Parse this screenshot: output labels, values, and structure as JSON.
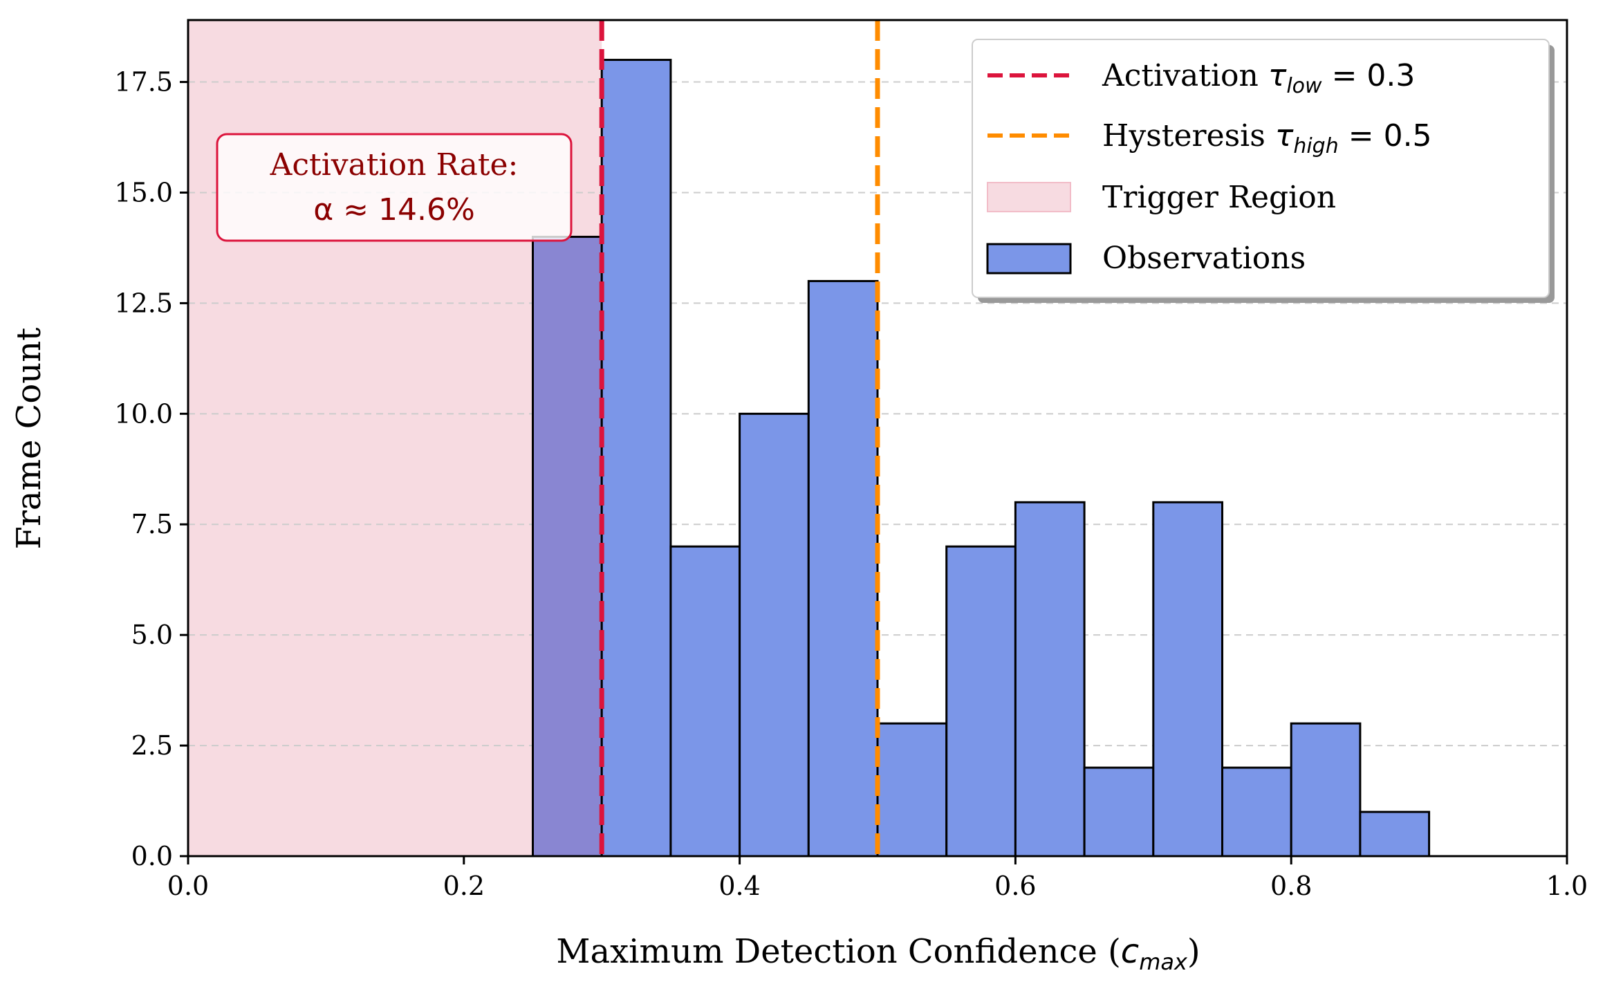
{
  "chart_data": {
    "type": "bar",
    "title": "",
    "xlabel_main": "Maximum Detection Confidence (",
    "xlabel_symbol": "c",
    "xlabel_subscript": "max",
    "xlabel_close": ")",
    "ylabel": "Frame Count",
    "xlim": [
      0.0,
      1.0
    ],
    "ylim": [
      0,
      18.9
    ],
    "grid": "y dashed",
    "bin_width": 0.05,
    "bins": [
      {
        "x0": 0.25,
        "count": 14
      },
      {
        "x0": 0.3,
        "count": 18
      },
      {
        "x0": 0.35,
        "count": 7
      },
      {
        "x0": 0.4,
        "count": 10
      },
      {
        "x0": 0.45,
        "count": 13
      },
      {
        "x0": 0.5,
        "count": 3
      },
      {
        "x0": 0.55,
        "count": 7
      },
      {
        "x0": 0.6,
        "count": 8
      },
      {
        "x0": 0.65,
        "count": 2
      },
      {
        "x0": 0.7,
        "count": 8
      },
      {
        "x0": 0.75,
        "count": 2
      },
      {
        "x0": 0.8,
        "count": 3
      },
      {
        "x0": 0.85,
        "count": 1
      }
    ],
    "x_ticks": [
      {
        "value": 0.0,
        "label": "0.0"
      },
      {
        "value": 0.2,
        "label": "0.2"
      },
      {
        "value": 0.4,
        "label": "0.4"
      },
      {
        "value": 0.6,
        "label": "0.6"
      },
      {
        "value": 0.8,
        "label": "0.8"
      },
      {
        "value": 1.0,
        "label": "1.0"
      }
    ],
    "y_ticks": [
      {
        "value": 0.0,
        "label": "0.0"
      },
      {
        "value": 2.5,
        "label": "2.5"
      },
      {
        "value": 5.0,
        "label": "5.0"
      },
      {
        "value": 7.5,
        "label": "7.5"
      },
      {
        "value": 10.0,
        "label": "10.0"
      },
      {
        "value": 12.5,
        "label": "12.5"
      },
      {
        "value": 15.0,
        "label": "15.0"
      },
      {
        "value": 17.5,
        "label": "17.5"
      }
    ],
    "trigger_region": {
      "x_from": 0.0,
      "x_to": 0.3,
      "color": "#f7dbe1"
    },
    "thresholds": [
      {
        "x": 0.3,
        "color": "#dc143c"
      },
      {
        "x": 0.5,
        "color": "#ff8c00"
      }
    ],
    "bar_color": "#7b96e8",
    "bar_overlap_color": "#8986d2",
    "legend": {
      "position": "top-right",
      "items": [
        {
          "kind": "dash",
          "color": "#dc143c",
          "text": "Activation ",
          "symbol": "τ",
          "subscript": "low",
          "suffix": " = 0.3"
        },
        {
          "kind": "dash",
          "color": "#ff8c00",
          "text": "Hysteresis ",
          "symbol": "τ",
          "subscript": "high",
          "suffix": " = 0.5"
        },
        {
          "kind": "patch-light",
          "color": "#f7dbe1",
          "text": "Trigger Region",
          "symbol": "",
          "subscript": "",
          "suffix": ""
        },
        {
          "kind": "patch",
          "color": "#7b96e8",
          "text": "Observations",
          "symbol": "",
          "subscript": "",
          "suffix": ""
        }
      ]
    },
    "annotation": {
      "line1": "Activation Rate:",
      "line2": "α ≈ 14.6%",
      "color": "#8b0000",
      "border_color": "#dc143c"
    }
  }
}
